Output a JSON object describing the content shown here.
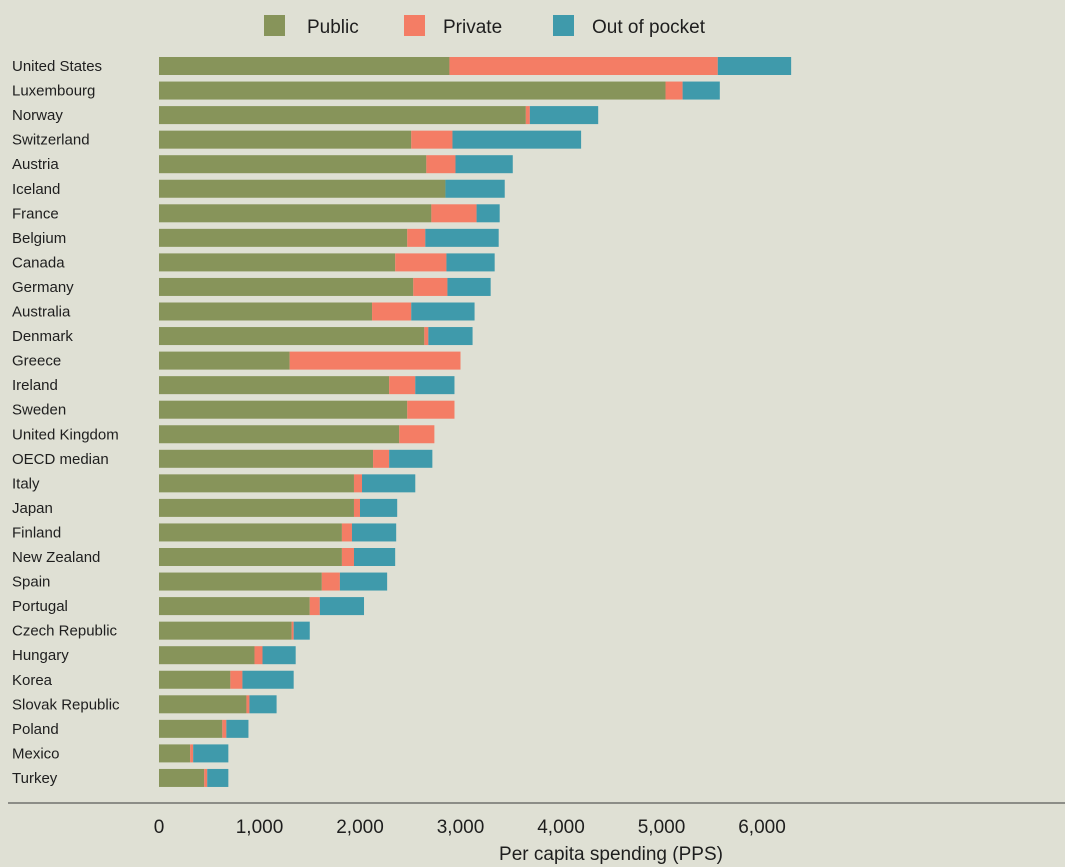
{
  "chart_data": {
    "type": "bar",
    "orientation": "horizontal",
    "stacked": true,
    "title": "",
    "xlabel": "Per capita spending (PPS)",
    "ylabel": "",
    "xlim": [
      0,
      6300
    ],
    "xticks": [
      0,
      1000,
      2000,
      3000,
      4000,
      5000,
      6000
    ],
    "xtick_labels": [
      "0",
      "1,000",
      "2,000",
      "3,000",
      "4,000",
      "5,000",
      "6,000"
    ],
    "grid": false,
    "legend_position": "top",
    "categories": [
      "United States",
      "Luxembourg",
      "Norway",
      "Switzerland",
      "Austria",
      "Iceland",
      "France",
      "Belgium",
      "Canada",
      "Germany",
      "Australia",
      "Denmark",
      "Greece",
      "Ireland",
      "Sweden",
      "United Kingdom",
      "OECD median",
      "Italy",
      "Japan",
      "Finland",
      "New Zealand",
      "Spain",
      "Portugal",
      "Czech Republic",
      "Hungary",
      "Korea",
      "Slovak Republic",
      "Poland",
      "Mexico",
      "Turkey"
    ],
    "series": [
      {
        "name": "Public",
        "color": "#87945a",
        "values": [
          2890,
          5040,
          3650,
          2510,
          2660,
          2850,
          2710,
          2470,
          2350,
          2530,
          2120,
          2640,
          1300,
          2290,
          2470,
          2390,
          2130,
          1940,
          1940,
          1820,
          1820,
          1620,
          1500,
          1320,
          950,
          710,
          870,
          630,
          310,
          450
        ]
      },
      {
        "name": "Private",
        "color": "#f47d65",
        "values": [
          2670,
          170,
          40,
          410,
          290,
          0,
          450,
          180,
          510,
          340,
          390,
          40,
          1700,
          260,
          470,
          350,
          160,
          80,
          60,
          100,
          120,
          180,
          100,
          20,
          80,
          120,
          30,
          40,
          30,
          30
        ]
      },
      {
        "name": "Out of pocket",
        "color": "#3f9aab",
        "values": [
          730,
          370,
          680,
          1280,
          570,
          590,
          230,
          730,
          480,
          430,
          630,
          440,
          0,
          390,
          0,
          0,
          430,
          530,
          370,
          440,
          410,
          470,
          440,
          160,
          330,
          510,
          270,
          220,
          350,
          210
        ]
      }
    ]
  }
}
